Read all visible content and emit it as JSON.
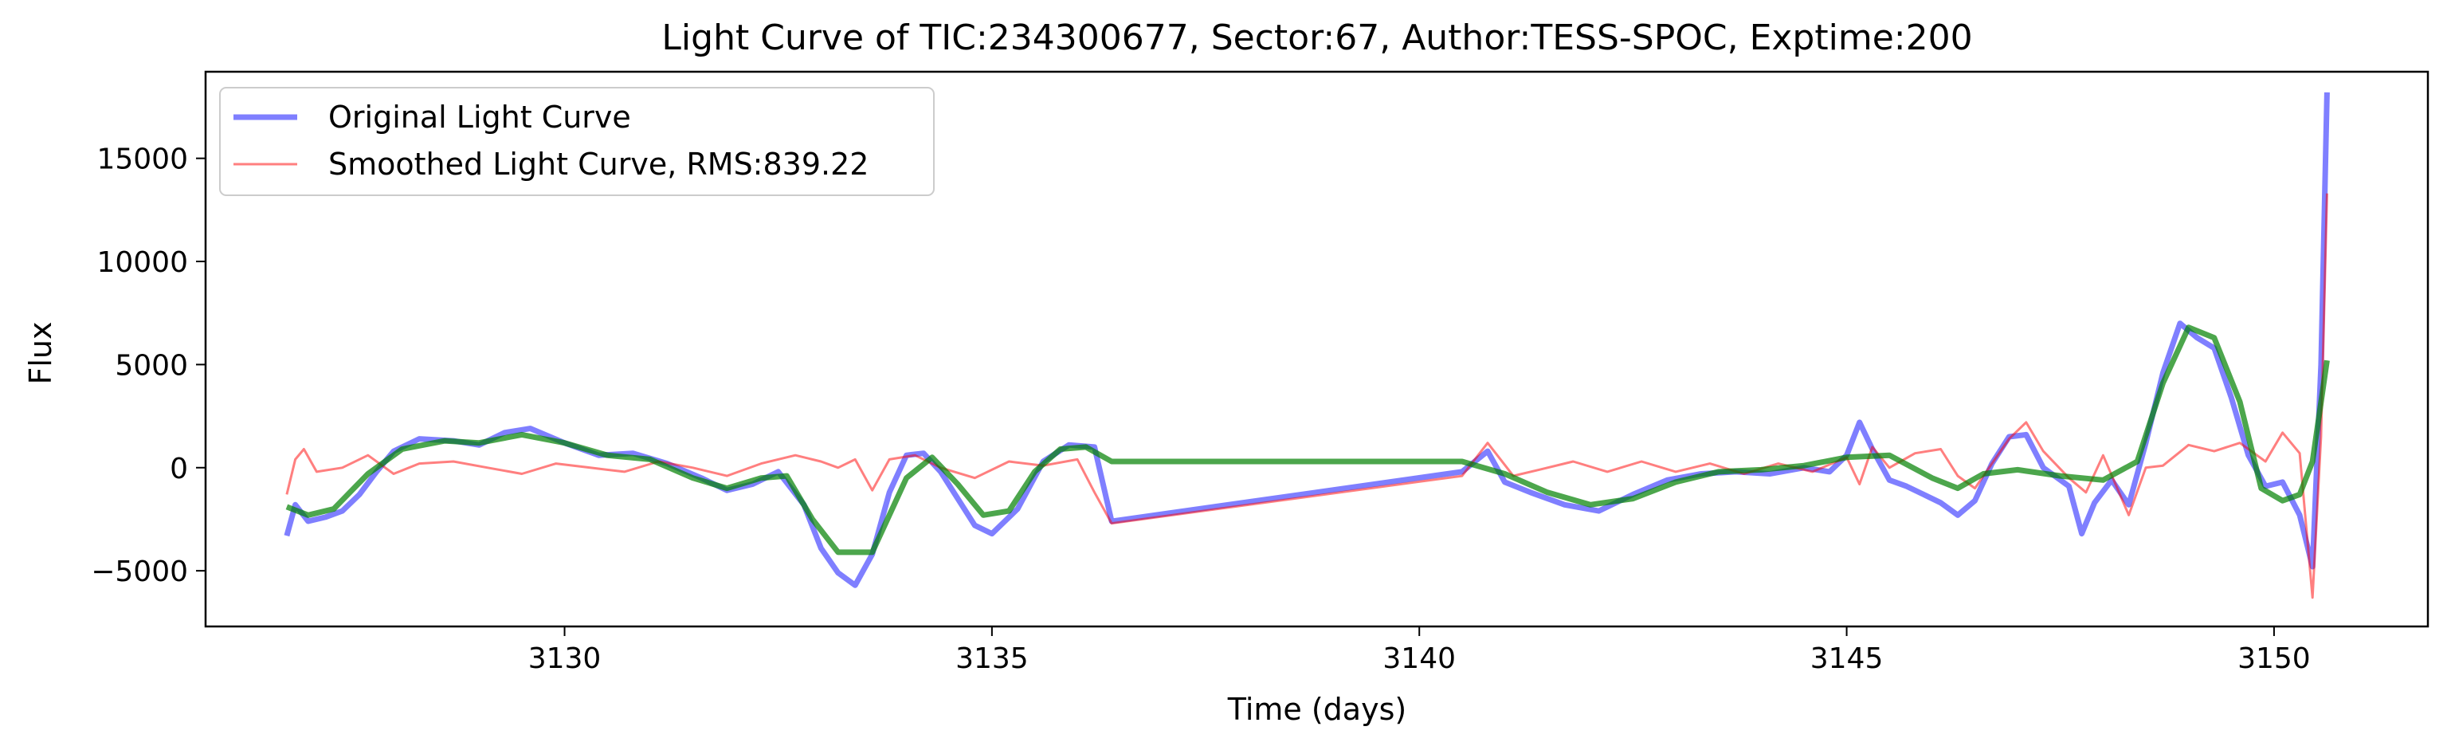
{
  "chart_data": {
    "type": "line",
    "title": "Light Curve of TIC:234300677, Sector:67, Author:TESS-SPOC, Exptime:200",
    "xlabel": "Time (days)",
    "ylabel": "Flux",
    "xlim": [
      3125.8,
      3151.8
    ],
    "ylim": [
      -7700,
      19200
    ],
    "xticks": [
      3130,
      3135,
      3140,
      3145,
      3150
    ],
    "yticks": [
      -5000,
      0,
      5000,
      10000,
      15000
    ],
    "grid": false,
    "legend_position": "top-left",
    "series": [
      {
        "name": "Original Light Curve",
        "color": "#0000ff",
        "opacity": 0.5,
        "points": [
          [
            3126.75,
            -3300
          ],
          [
            3126.85,
            -1800
          ],
          [
            3127.0,
            -2600
          ],
          [
            3127.2,
            -2400
          ],
          [
            3127.4,
            -2100
          ],
          [
            3127.6,
            -1300
          ],
          [
            3127.8,
            -200
          ],
          [
            3128.0,
            800
          ],
          [
            3128.3,
            1400
          ],
          [
            3128.7,
            1300
          ],
          [
            3129.0,
            1100
          ],
          [
            3129.3,
            1700
          ],
          [
            3129.6,
            1900
          ],
          [
            3130.0,
            1200
          ],
          [
            3130.4,
            600
          ],
          [
            3130.8,
            700
          ],
          [
            3131.2,
            200
          ],
          [
            3131.6,
            -500
          ],
          [
            3131.9,
            -1100
          ],
          [
            3132.2,
            -800
          ],
          [
            3132.5,
            -200
          ],
          [
            3132.8,
            -1800
          ],
          [
            3133.0,
            -3900
          ],
          [
            3133.2,
            -5100
          ],
          [
            3133.4,
            -5700
          ],
          [
            3133.6,
            -4200
          ],
          [
            3133.8,
            -1200
          ],
          [
            3134.0,
            600
          ],
          [
            3134.2,
            700
          ],
          [
            3134.4,
            -200
          ],
          [
            3134.6,
            -1500
          ],
          [
            3134.8,
            -2800
          ],
          [
            3135.0,
            -3200
          ],
          [
            3135.3,
            -2000
          ],
          [
            3135.6,
            300
          ],
          [
            3135.9,
            1100
          ],
          [
            3136.2,
            1000
          ],
          [
            3136.4,
            -2600
          ],
          [
            3140.5,
            -200
          ],
          [
            3140.8,
            800
          ],
          [
            3141.0,
            -700
          ],
          [
            3141.3,
            -1200
          ],
          [
            3141.7,
            -1800
          ],
          [
            3142.1,
            -2100
          ],
          [
            3142.5,
            -1300
          ],
          [
            3142.9,
            -600
          ],
          [
            3143.3,
            -300
          ],
          [
            3143.7,
            -200
          ],
          [
            3144.1,
            -300
          ],
          [
            3144.5,
            0
          ],
          [
            3144.8,
            -200
          ],
          [
            3145.0,
            600
          ],
          [
            3145.15,
            2200
          ],
          [
            3145.3,
            900
          ],
          [
            3145.5,
            -600
          ],
          [
            3145.7,
            -900
          ],
          [
            3145.9,
            -1300
          ],
          [
            3146.1,
            -1700
          ],
          [
            3146.3,
            -2300
          ],
          [
            3146.5,
            -1600
          ],
          [
            3146.7,
            200
          ],
          [
            3146.9,
            1500
          ],
          [
            3147.1,
            1600
          ],
          [
            3147.3,
            0
          ],
          [
            3147.6,
            -900
          ],
          [
            3147.75,
            -3200
          ],
          [
            3147.9,
            -1700
          ],
          [
            3148.1,
            -600
          ],
          [
            3148.3,
            -1800
          ],
          [
            3148.5,
            1200
          ],
          [
            3148.7,
            4600
          ],
          [
            3148.9,
            7000
          ],
          [
            3149.1,
            6300
          ],
          [
            3149.3,
            5800
          ],
          [
            3149.5,
            3400
          ],
          [
            3149.7,
            600
          ],
          [
            3149.9,
            -900
          ],
          [
            3150.1,
            -700
          ],
          [
            3150.3,
            -2300
          ],
          [
            3150.45,
            -4800
          ],
          [
            3150.55,
            5000
          ],
          [
            3150.62,
            18200
          ]
        ]
      },
      {
        "name": "Smoothed Light Curve, RMS:839.22",
        "color": "#ff0000",
        "opacity": 0.5,
        "points": [
          [
            3126.75,
            -1300
          ],
          [
            3126.85,
            400
          ],
          [
            3126.95,
            900
          ],
          [
            3127.1,
            -200
          ],
          [
            3127.4,
            0
          ],
          [
            3127.7,
            600
          ],
          [
            3128.0,
            -300
          ],
          [
            3128.3,
            200
          ],
          [
            3128.7,
            300
          ],
          [
            3129.1,
            0
          ],
          [
            3129.5,
            -300
          ],
          [
            3129.9,
            200
          ],
          [
            3130.3,
            0
          ],
          [
            3130.7,
            -200
          ],
          [
            3131.1,
            300
          ],
          [
            3131.5,
            0
          ],
          [
            3131.9,
            -400
          ],
          [
            3132.3,
            200
          ],
          [
            3132.7,
            600
          ],
          [
            3133.0,
            300
          ],
          [
            3133.2,
            0
          ],
          [
            3133.4,
            400
          ],
          [
            3133.6,
            -1100
          ],
          [
            3133.8,
            400
          ],
          [
            3134.1,
            600
          ],
          [
            3134.4,
            0
          ],
          [
            3134.8,
            -500
          ],
          [
            3135.2,
            300
          ],
          [
            3135.6,
            100
          ],
          [
            3136.0,
            400
          ],
          [
            3136.2,
            -1200
          ],
          [
            3136.4,
            -2700
          ],
          [
            3140.5,
            -400
          ],
          [
            3140.8,
            1200
          ],
          [
            3141.1,
            -400
          ],
          [
            3141.4,
            -100
          ],
          [
            3141.8,
            300
          ],
          [
            3142.2,
            -200
          ],
          [
            3142.6,
            300
          ],
          [
            3143.0,
            -200
          ],
          [
            3143.4,
            200
          ],
          [
            3143.8,
            -300
          ],
          [
            3144.2,
            200
          ],
          [
            3144.6,
            -200
          ],
          [
            3145.0,
            500
          ],
          [
            3145.15,
            -800
          ],
          [
            3145.3,
            1000
          ],
          [
            3145.5,
            0
          ],
          [
            3145.8,
            700
          ],
          [
            3146.1,
            900
          ],
          [
            3146.3,
            -400
          ],
          [
            3146.5,
            -1000
          ],
          [
            3146.7,
            200
          ],
          [
            3146.9,
            1400
          ],
          [
            3147.1,
            2200
          ],
          [
            3147.3,
            800
          ],
          [
            3147.6,
            -500
          ],
          [
            3147.8,
            -1200
          ],
          [
            3148.0,
            600
          ],
          [
            3148.3,
            -2300
          ],
          [
            3148.5,
            0
          ],
          [
            3148.7,
            100
          ],
          [
            3149.0,
            1100
          ],
          [
            3149.3,
            800
          ],
          [
            3149.6,
            1200
          ],
          [
            3149.9,
            300
          ],
          [
            3150.1,
            1700
          ],
          [
            3150.3,
            700
          ],
          [
            3150.45,
            -6300
          ],
          [
            3150.55,
            1500
          ],
          [
            3150.62,
            13300
          ]
        ]
      },
      {
        "color": "#008000",
        "opacity": 0.7,
        "points": [
          [
            3126.75,
            -1900
          ],
          [
            3127.0,
            -2300
          ],
          [
            3127.3,
            -2000
          ],
          [
            3127.7,
            -300
          ],
          [
            3128.1,
            900
          ],
          [
            3128.6,
            1300
          ],
          [
            3129.0,
            1200
          ],
          [
            3129.5,
            1600
          ],
          [
            3130.0,
            1200
          ],
          [
            3130.5,
            600
          ],
          [
            3131.0,
            400
          ],
          [
            3131.5,
            -500
          ],
          [
            3131.9,
            -1000
          ],
          [
            3132.3,
            -500
          ],
          [
            3132.6,
            -400
          ],
          [
            3132.9,
            -2500
          ],
          [
            3133.2,
            -4100
          ],
          [
            3133.6,
            -4100
          ],
          [
            3134.0,
            -500
          ],
          [
            3134.3,
            500
          ],
          [
            3134.6,
            -800
          ],
          [
            3134.9,
            -2300
          ],
          [
            3135.2,
            -2100
          ],
          [
            3135.5,
            -200
          ],
          [
            3135.8,
            900
          ],
          [
            3136.1,
            1000
          ],
          [
            3136.4,
            300
          ],
          [
            3140.5,
            300
          ],
          [
            3141.0,
            -300
          ],
          [
            3141.5,
            -1200
          ],
          [
            3142.0,
            -1800
          ],
          [
            3142.5,
            -1500
          ],
          [
            3143.0,
            -700
          ],
          [
            3143.5,
            -200
          ],
          [
            3144.0,
            -100
          ],
          [
            3144.5,
            100
          ],
          [
            3145.0,
            500
          ],
          [
            3145.5,
            600
          ],
          [
            3146.0,
            -500
          ],
          [
            3146.3,
            -1000
          ],
          [
            3146.6,
            -300
          ],
          [
            3147.0,
            -100
          ],
          [
            3147.5,
            -400
          ],
          [
            3148.0,
            -600
          ],
          [
            3148.4,
            300
          ],
          [
            3148.7,
            4100
          ],
          [
            3149.0,
            6800
          ],
          [
            3149.3,
            6300
          ],
          [
            3149.6,
            3200
          ],
          [
            3149.85,
            -1000
          ],
          [
            3150.1,
            -1600
          ],
          [
            3150.3,
            -1300
          ],
          [
            3150.45,
            300
          ],
          [
            3150.62,
            5200
          ]
        ]
      }
    ]
  }
}
